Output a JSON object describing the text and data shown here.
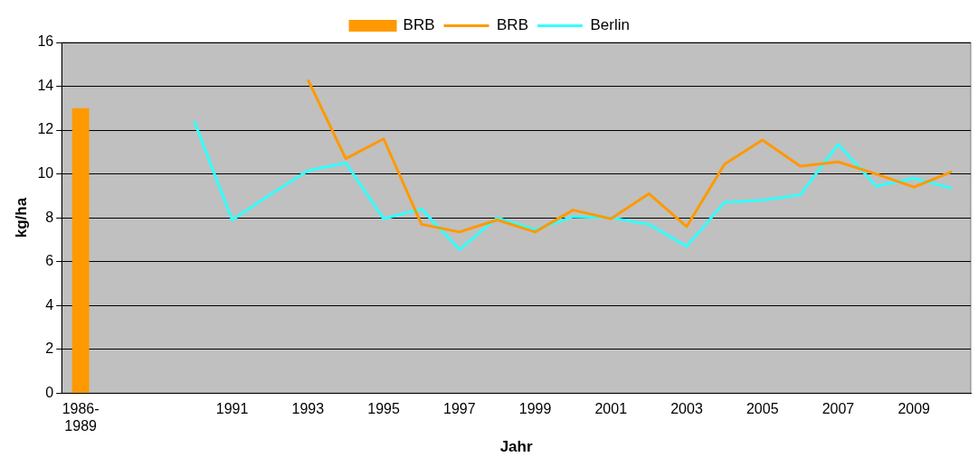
{
  "chart_data": {
    "type": "line",
    "xlabel": "Jahr",
    "ylabel": "kg/ha",
    "categories": [
      "1986-1989",
      null,
      null,
      null,
      "1991",
      null,
      "1993",
      null,
      "1995",
      null,
      "1997",
      null,
      "1999",
      null,
      "2001",
      null,
      "2003",
      null,
      "2005",
      null,
      "2007",
      null,
      "2009",
      null
    ],
    "series": [
      {
        "name": "BRB",
        "type": "bar",
        "color": "#ff9900",
        "values": [
          13,
          null,
          null,
          null,
          null,
          null,
          null,
          null,
          null,
          null,
          null,
          null,
          null,
          null,
          null,
          null,
          null,
          null,
          null,
          null,
          null,
          null,
          null,
          null
        ]
      },
      {
        "name": "BRB",
        "color": "#ff9900",
        "values": [
          null,
          null,
          null,
          null,
          null,
          null,
          14.3,
          10.7,
          11.6,
          7.7,
          7.35,
          7.9,
          7.35,
          8.35,
          7.95,
          9.1,
          7.6,
          10.45,
          11.55,
          10.35,
          10.55,
          10.0,
          9.4,
          10.1
        ]
      },
      {
        "name": "Berlin",
        "color": "#33ffff",
        "values": [
          null,
          null,
          null,
          12.4,
          7.9,
          9.05,
          10.15,
          10.5,
          7.95,
          8.4,
          6.55,
          8.0,
          7.45,
          8.05,
          8.0,
          7.7,
          6.7,
          8.7,
          8.8,
          9.05,
          11.35,
          9.45,
          9.8,
          9.35
        ]
      }
    ],
    "ylim": [
      0,
      16
    ],
    "yticks": [
      0,
      2,
      4,
      6,
      8,
      10,
      12,
      14,
      16
    ],
    "grid": "y",
    "legend": "top",
    "marker": "none",
    "line_style": "solid"
  }
}
